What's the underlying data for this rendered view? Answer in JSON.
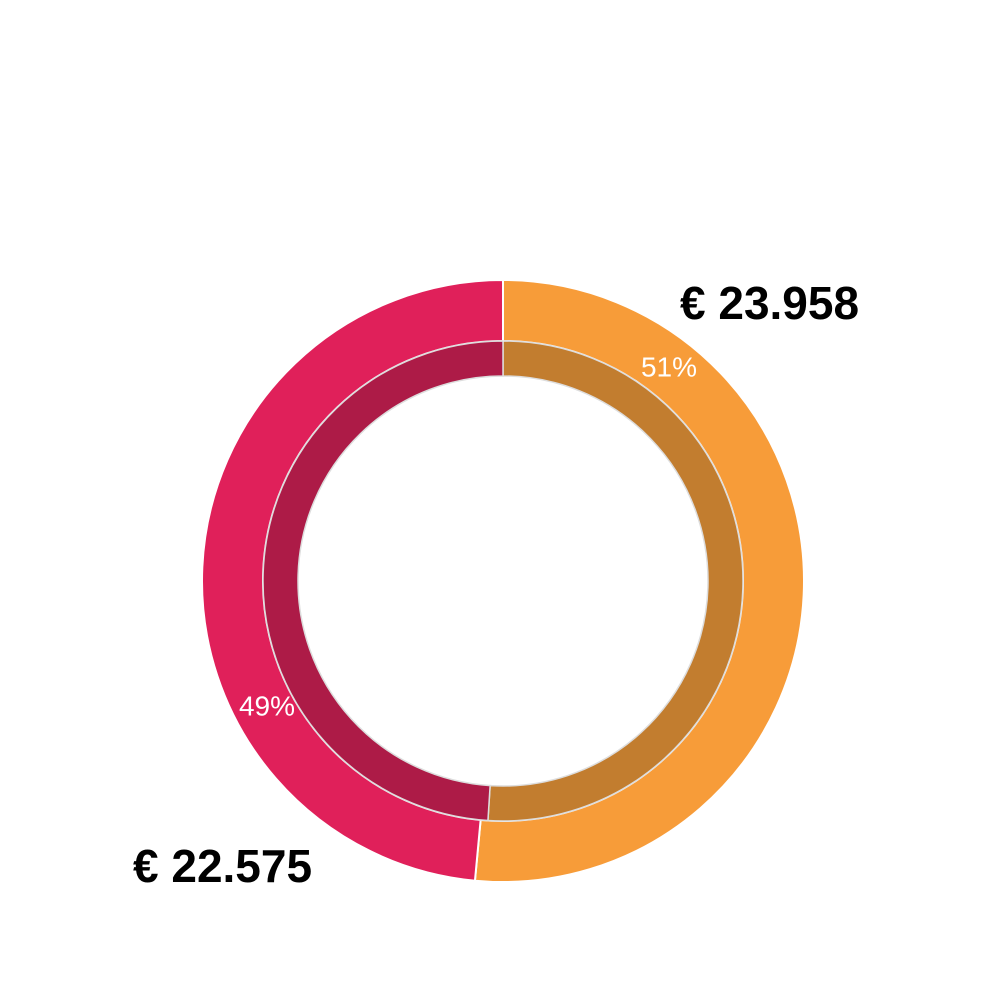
{
  "chart_data": {
    "type": "donut",
    "values": [
      23958,
      22575
    ],
    "value_labels": [
      "€ 23.958",
      "€ 22.575"
    ],
    "percents": [
      51,
      49
    ],
    "percent_labels": [
      "51%",
      "49%"
    ],
    "colors": [
      "#f79c39",
      "#e0205a"
    ],
    "inner_colors": [
      "#c27d2f",
      "#ad1b47"
    ]
  }
}
